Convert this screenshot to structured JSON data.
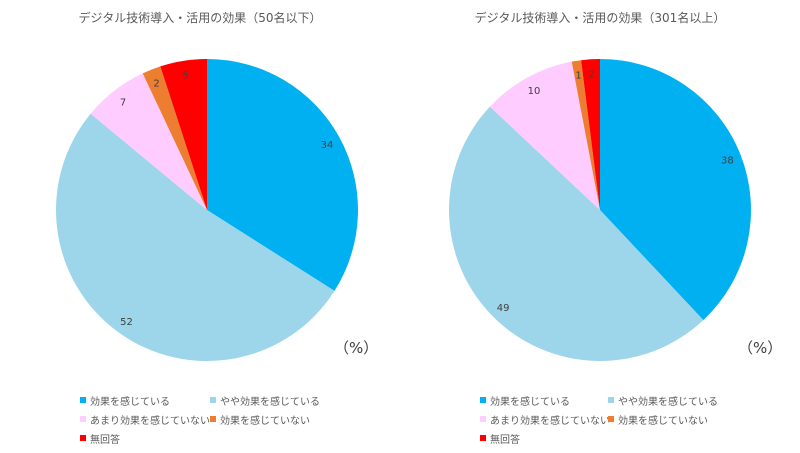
{
  "chart_data": [
    {
      "type": "pie",
      "title": "デジタル技術導入・活用の効果（50名以下）",
      "unit": "（%）",
      "categories": [
        "効果を感じている",
        "やや効果を感じている",
        "あまり効果を感じていない",
        "効果を感じていない",
        "無回答"
      ],
      "values": [
        34,
        52,
        7,
        2,
        5
      ],
      "colors": [
        "#00b0f0",
        "#9dd5ea",
        "#ffccff",
        "#ed7d31",
        "#ff0000"
      ],
      "start_angle_deg": 0,
      "direction": "clockwise",
      "legend_position": "bottom"
    },
    {
      "type": "pie",
      "title": "デジタル技術導入・活用の効果（301名以上）",
      "unit": "（%）",
      "categories": [
        "効果を感じている",
        "やや効果を感じている",
        "あまり効果を感じていない",
        "効果を感じていない",
        "無回答"
      ],
      "values": [
        38,
        49,
        10,
        1,
        2
      ],
      "colors": [
        "#00b0f0",
        "#9dd5ea",
        "#ffccff",
        "#ed7d31",
        "#ff0000"
      ],
      "start_angle_deg": 0,
      "direction": "clockwise",
      "legend_position": "bottom"
    }
  ]
}
